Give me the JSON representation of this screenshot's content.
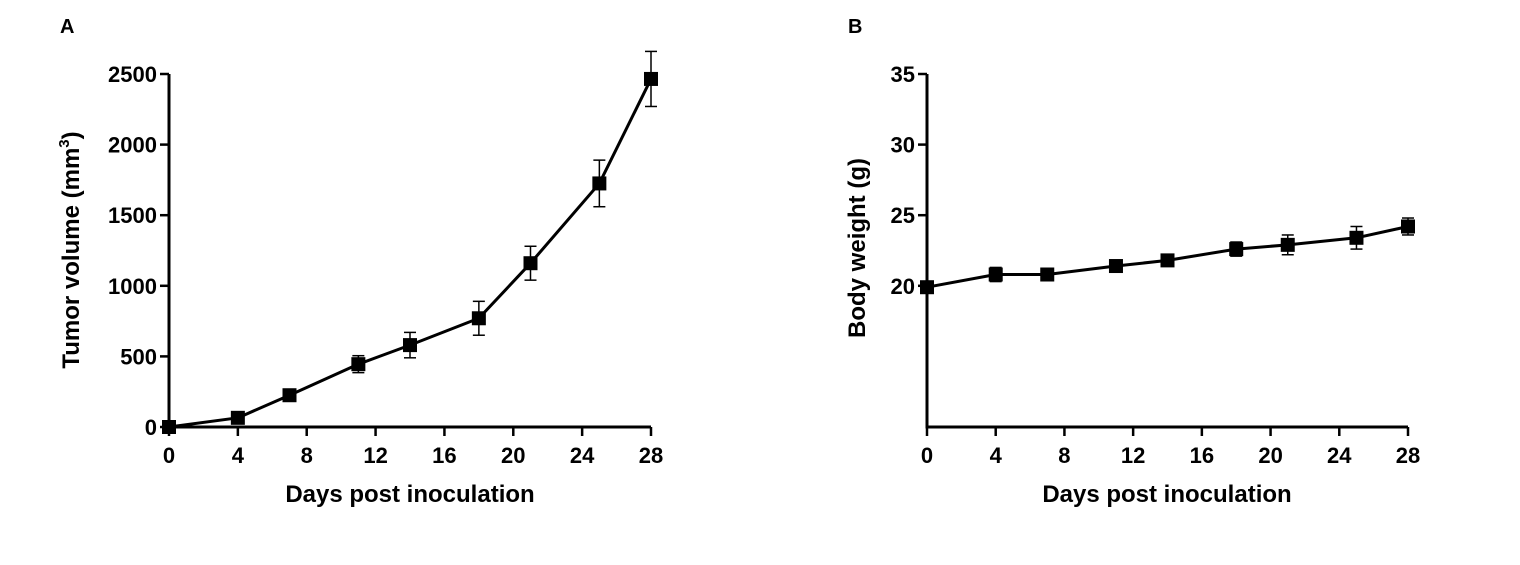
{
  "panels": [
    {
      "letter": "A",
      "ylabel": "Tumor volume (mm",
      "ylabel_sup": "3",
      "ylabel_tail": ")",
      "xlabel": "Days post inoculation"
    },
    {
      "letter": "B",
      "ylabel": "Body weight (g)",
      "xlabel": "Days post inoculation"
    }
  ],
  "chart_data": [
    {
      "type": "line",
      "title": "",
      "panel": "A",
      "xlabel": "Days post inoculation",
      "ylabel": "Tumor volume (mm3)",
      "xlim": [
        0,
        28
      ],
      "ylim": [
        0,
        2500
      ],
      "xticks": [
        0,
        4,
        8,
        12,
        16,
        20,
        24,
        28
      ],
      "yticks": [
        0,
        500,
        1000,
        1500,
        2000,
        2500
      ],
      "grid": false,
      "marker": "square",
      "color": "#000000",
      "series": [
        {
          "x": [
            0,
            4,
            7,
            11,
            14,
            18,
            21,
            25,
            28
          ],
          "y": [
            0,
            65,
            225,
            445,
            580,
            770,
            1160,
            1725,
            2465
          ],
          "error": [
            0,
            20,
            30,
            60,
            90,
            120,
            120,
            165,
            195
          ]
        }
      ]
    },
    {
      "type": "line",
      "title": "",
      "panel": "B",
      "xlabel": "Days post inoculation",
      "ylabel": "Body weight (g)",
      "xlim": [
        0,
        28
      ],
      "ylim": [
        10,
        35
      ],
      "xticks": [
        0,
        4,
        8,
        12,
        16,
        20,
        24,
        28
      ],
      "yticks": [
        20,
        25,
        30,
        35
      ],
      "grid": false,
      "marker": "square",
      "color": "#000000",
      "series": [
        {
          "x": [
            0,
            4,
            7,
            11,
            14,
            18,
            21,
            25,
            28
          ],
          "y": [
            19.9,
            20.8,
            20.8,
            21.4,
            21.8,
            22.6,
            22.9,
            23.4,
            24.2
          ],
          "error": [
            0.3,
            0.5,
            0.3,
            0.4,
            0.4,
            0.5,
            0.7,
            0.8,
            0.6
          ]
        }
      ]
    }
  ]
}
